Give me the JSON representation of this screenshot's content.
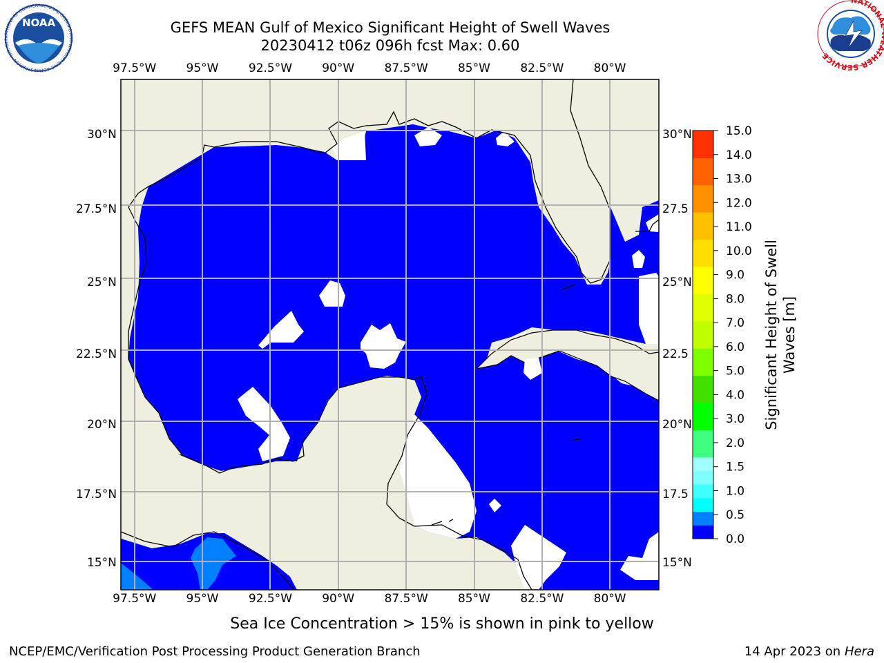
{
  "title": {
    "line1": "GEFS MEAN Gulf of Mexico Significant Height of Swell Waves",
    "line2": "20230412 t06z 096h fcst   Max: 0.60"
  },
  "axes": {
    "lon_labels": [
      "97.5°W",
      "95°W",
      "92.5°W",
      "90°W",
      "87.5°W",
      "85°W",
      "82.5°W",
      "80°W"
    ],
    "lon_values": [
      -97.5,
      -95,
      -92.5,
      -90,
      -87.5,
      -85,
      -82.5,
      -80
    ],
    "lat_labels_left": [
      "30°N",
      "27.5°N",
      "25°N",
      "22.5°N",
      "20°N",
      "17.5°N",
      "15°N"
    ],
    "lat_labels_right": [
      "30°N",
      "27.5",
      "25°N",
      "22.5",
      "20°N",
      "17.5",
      "15°N"
    ],
    "lat_values": [
      30,
      27.5,
      25,
      22.5,
      20,
      17.5,
      15
    ],
    "lon_range": [
      -98,
      -78.2
    ],
    "lat_range": [
      14,
      31.8
    ],
    "grid": true
  },
  "colorbar": {
    "label": "Significant Height of Swell Waves [m]",
    "label_line1": "Significant Height of Swell",
    "label_line2": "Waves [m]",
    "tick_labels": [
      "0.0",
      "0.5",
      "1.0",
      "1.5",
      "2.0",
      "3.0",
      "4.0",
      "5.0",
      "6.0",
      "7.0",
      "8.0",
      "9.0",
      "10.0",
      "11.0",
      "12.0",
      "13.0",
      "14.0",
      "15.0"
    ],
    "colors": [
      "#0000ff",
      "#0080ff",
      "#00ffff",
      "#40ffff",
      "#80ffff",
      "#a0ffff",
      "#40ff80",
      "#00ff00",
      "#40e000",
      "#80ff00",
      "#c0ff00",
      "#e0ff00",
      "#ffff00",
      "#ffe000",
      "#ffc000",
      "#ff9000",
      "#ff6000",
      "#ff3000",
      "#ff0000"
    ]
  },
  "colors": {
    "land": "#efefdf",
    "ocean_swell_0_0.5": "#0000ff",
    "ocean_swell_0.5_1.0": "#0080ff",
    "no_data": "#ffffff",
    "grid": "#b0b0b0"
  },
  "logos": {
    "noaa_text": "NOAA",
    "noaa_ring_text": "NATIONAL OCEANIC AND ATMOSPHERIC ADMINISTRATION · U.S. DEPARTMENT OF COMMERCE",
    "nws_ring_text": "NATIONAL WEATHER SERVICE"
  },
  "footer": {
    "note": "Sea Ice Concentration > 15% is shown in pink to yellow",
    "org": "NCEP/EMC/Verification Post Processing Product Generation Branch",
    "date": "14 Apr 2023 on ",
    "host": "Hera"
  }
}
